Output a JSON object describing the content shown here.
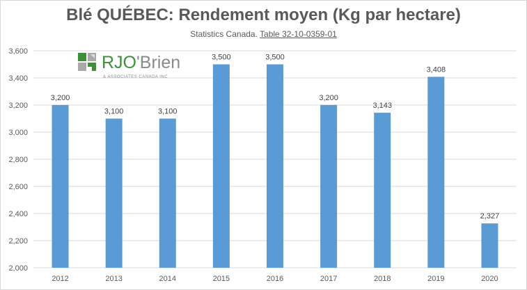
{
  "colors": {
    "bar": "#5b9bd5",
    "grid": "#d9d9d9",
    "text": "#595959",
    "logo_green": "#3d8f3a",
    "logo_gray": "#8a8a8a"
  },
  "logo": {
    "brand_left": "RJO",
    "brand_right": "Brien",
    "apostrophe": "'",
    "tagline": "& ASSOCIATES CANADA INC"
  },
  "chart_data": {
    "type": "bar",
    "title": "Blé QUÉBEC: Rendement moyen (Kg par hectare)",
    "subtitle_prefix": "Statistics Canada. ",
    "subtitle_link": "Table 32-10-0359-01",
    "categories": [
      "2012",
      "2013",
      "2014",
      "2015",
      "2016",
      "2017",
      "2018",
      "2019",
      "2020"
    ],
    "values": [
      3200,
      3100,
      3100,
      3500,
      3500,
      3200,
      3143,
      3408,
      2327
    ],
    "value_labels": [
      "3,200",
      "3,100",
      "3,100",
      "3,500",
      "3,500",
      "3,200",
      "3,143",
      "3,408",
      "2,327"
    ],
    "ylim": [
      2000,
      3600
    ],
    "yticks": [
      2000,
      2200,
      2400,
      2600,
      2800,
      3000,
      3200,
      3400,
      3600
    ],
    "ytick_labels": [
      "2,000",
      "2,200",
      "2,400",
      "2,600",
      "2,800",
      "3,000",
      "3,200",
      "3,400",
      "3,600"
    ],
    "grid": true,
    "legend": "none",
    "xlabel": "",
    "ylabel": ""
  }
}
